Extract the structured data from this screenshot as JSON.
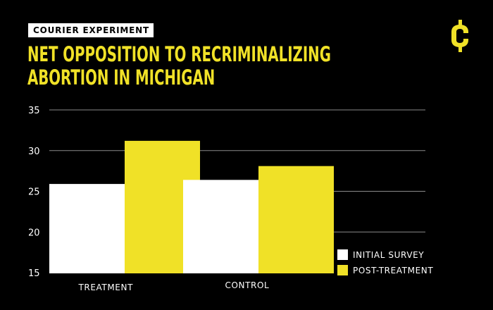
{
  "header": {
    "tag": "COURIER EXPERIMENT",
    "title_line1": "NET OPPOSITION TO RECRIMINALIZING",
    "title_line2": "ABORTION IN MICHIGAN"
  },
  "logo": {
    "icon": "courier-c-logo-icon",
    "color": "#f0e127"
  },
  "colors": {
    "background": "#000000",
    "accent": "#f0e127",
    "white": "#ffffff",
    "grid": "#8a8a8a"
  },
  "chart_data": {
    "type": "bar",
    "title": "NET OPPOSITION TO RECRIMINALIZING ABORTION IN MICHIGAN",
    "categories": [
      "TREATMENT",
      "CONTROL"
    ],
    "series": [
      {
        "name": "INITIAL SURVEY",
        "color": "#ffffff",
        "values": [
          25.9,
          26.4
        ]
      },
      {
        "name": "POST-TREATMENT",
        "color": "#f0e127",
        "values": [
          31.2,
          28.1
        ]
      }
    ],
    "ylim": [
      15,
      35
    ],
    "yticks": [
      "35",
      "30",
      "25",
      "20",
      "15"
    ],
    "grid": true,
    "legend_position": "bottom-right"
  }
}
